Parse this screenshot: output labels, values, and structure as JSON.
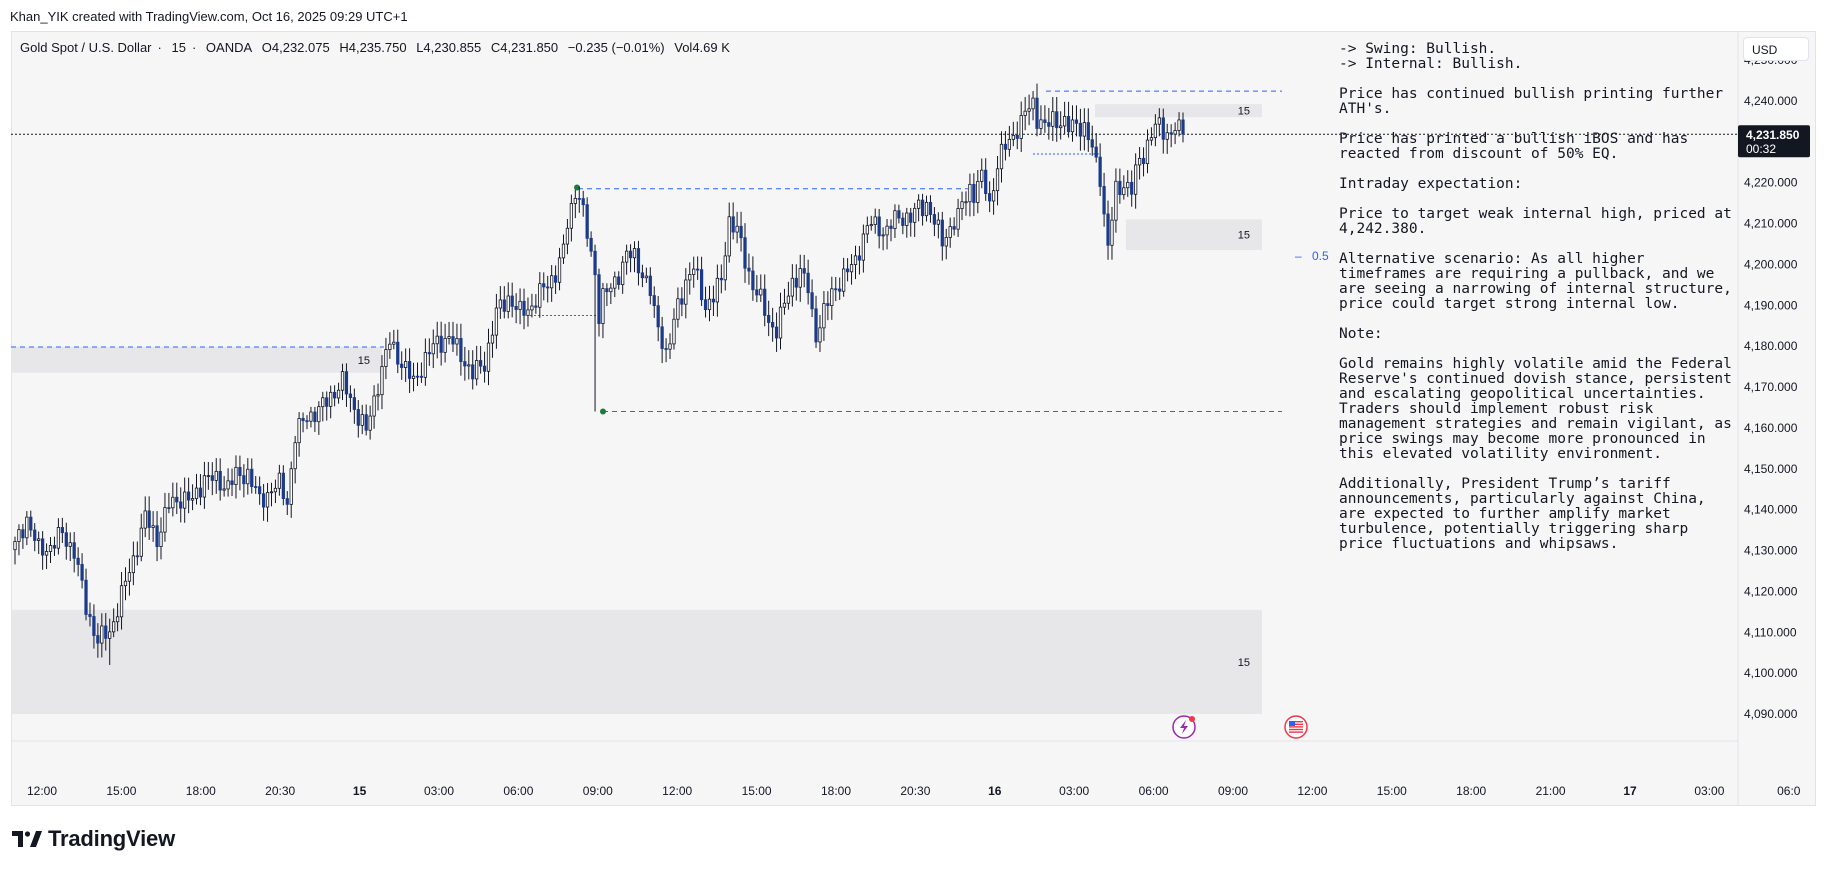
{
  "attribution": "Khan_YIK created with TradingView.com, Oct 16, 2025 09:29 UTC+1",
  "symbol": {
    "name": "Gold Spot / U.S. Dollar",
    "interval": "15",
    "exchange": "OANDA",
    "open": "O4,232.075",
    "high": "H4,235.750",
    "low": "L4,230.855",
    "close": "C4,231.850",
    "change": "−0.235 (−0.01%)",
    "volume": "Vol4.69 K"
  },
  "currency_button": "USD",
  "price_axis": {
    "labels": [
      "4,250.000",
      "4,240.000",
      "4,230.000",
      "4,220.000",
      "4,210.000",
      "4,200.000",
      "4,190.000",
      "4,180.000",
      "4,170.000",
      "4,160.000",
      "4,150.000",
      "4,140.000",
      "4,130.000",
      "4,120.000",
      "4,110.000",
      "4,100.000",
      "4,090.000"
    ],
    "current_price": "4,231.850",
    "countdown": "00:32",
    "current_color": "#131722"
  },
  "time_axis": {
    "labels": [
      "12:00",
      "15:00",
      "18:00",
      "20:30",
      "15",
      "03:00",
      "06:00",
      "09:00",
      "12:00",
      "15:00",
      "18:00",
      "20:30",
      "16",
      "03:00",
      "06:00",
      "09:00",
      "12:00",
      "15:00",
      "18:00",
      "21:00",
      "17",
      "03:00",
      "06:0"
    ],
    "bold": [
      false,
      false,
      false,
      false,
      true,
      false,
      false,
      false,
      false,
      false,
      false,
      false,
      true,
      false,
      false,
      false,
      false,
      false,
      false,
      false,
      true,
      false,
      false
    ]
  },
  "chart_data": {
    "type": "candlestick",
    "symbol": "XAUUSD",
    "timeframe": "15",
    "ylim": [
      4085,
      4254
    ],
    "bullish_color": "#ffffff",
    "bearish_color": "#1b3a8c",
    "levels": [
      {
        "type": "dashed",
        "price": 4242.38,
        "color": "#2962ff"
      },
      {
        "type": "dashed",
        "price": 4218.5,
        "color": "#2962ff"
      },
      {
        "type": "dashed",
        "price": 4179.8,
        "color": "#2962ff"
      },
      {
        "type": "dashed",
        "price": 4164.0,
        "color": "#2962ff"
      },
      {
        "type": "dotted",
        "price": 4227.0,
        "color": "#2962ff"
      },
      {
        "type": "dotted",
        "price": 4187.5,
        "color": "#2962ff"
      },
      {
        "type": "dotted",
        "price": 4231.85,
        "color": "#131722"
      }
    ],
    "zones": [
      {
        "label": "15",
        "top": 4239.2,
        "bottom": 4236.0
      },
      {
        "label": "15",
        "top": 4211.0,
        "bottom": 4203.5
      },
      {
        "label": "15",
        "top": 4179.8,
        "bottom": 4173.5
      },
      {
        "label": "15",
        "top": 4115.5,
        "bottom": 4090.0
      }
    ],
    "fib_label": "0.5",
    "fib_price": 4202.0,
    "zone_label_text": "15"
  },
  "notes": [
    "-> Swing: Bullish.",
    "-> Internal: Bullish.",
    "Price has continued bullish printing further ATH's.",
    "Price has printed a bullish iBOS and has reacted from discount of 50% EQ.",
    "Intraday expectation:",
    "Price to target weak internal high, priced at 4,242.380.",
    "Alternative scenario:  As all higher timeframes are requiring a pullback, and we are seeing a narrowing of internal structure, price could target strong internal low.",
    "Note:",
    "Gold remains highly volatile amid the Federal Reserve's continued dovish stance, persistent and escalating geopolitical uncertainties. Traders should implement robust risk management strategies and remain vigilant, as price swings may become more pronounced in this elevated volatility environment.",
    "Additionally, President Trump’s tariff announcements, particularly against China, are expected to further amplify market turbulence, potentially triggering sharp price fluctuations and whipsaws."
  ],
  "icons": {
    "lightning": "lightning-event-icon",
    "flag": "us-flag-event-icon"
  },
  "footer": {
    "logo_text": "TradingView"
  }
}
